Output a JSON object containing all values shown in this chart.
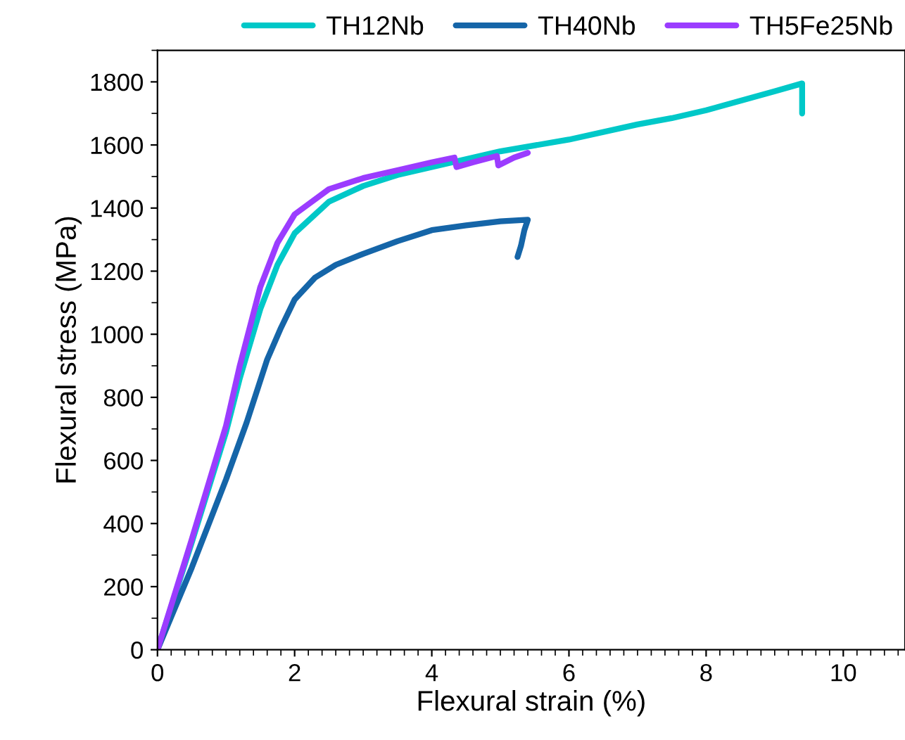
{
  "chart_data": {
    "type": "line",
    "xlabel": "Flexural strain (%)",
    "ylabel": "Flexural stress (MPa)",
    "xlim": [
      0,
      10.9
    ],
    "ylim": [
      0,
      1900
    ],
    "xticks": [
      0,
      2,
      4,
      6,
      8,
      10
    ],
    "yticks": [
      0,
      200,
      400,
      600,
      800,
      1000,
      1200,
      1400,
      1600,
      1800
    ],
    "grid": false,
    "legend": "top",
    "marker": "none",
    "line_style": "solid",
    "series": [
      {
        "name": "TH12Nb",
        "color": "#00c8c8",
        "x": [
          0,
          0.5,
          1,
          1.2,
          1.5,
          1.75,
          2,
          2.5,
          3,
          3.5,
          4,
          4.5,
          5,
          6,
          7,
          7.5,
          8,
          8.5,
          9,
          9.4,
          9.4
        ],
        "values": [
          0,
          340,
          690,
          860,
          1080,
          1220,
          1320,
          1420,
          1470,
          1505,
          1530,
          1555,
          1580,
          1617,
          1665,
          1685,
          1710,
          1740,
          1770,
          1795,
          1700
        ]
      },
      {
        "name": "TH40Nb",
        "color": "#1565a8",
        "x": [
          0,
          0.5,
          1,
          1.3,
          1.6,
          1.8,
          2,
          2.3,
          2.6,
          3,
          3.5,
          4,
          4.5,
          5,
          5.4,
          5.35,
          5.3,
          5.25
        ],
        "values": [
          0,
          260,
          540,
          720,
          920,
          1020,
          1110,
          1180,
          1220,
          1255,
          1295,
          1330,
          1345,
          1358,
          1363,
          1330,
          1280,
          1245
        ]
      },
      {
        "name": "TH5Fe25Nb",
        "color": "#9b3cff",
        "x": [
          0,
          0.5,
          1,
          1.2,
          1.5,
          1.75,
          2,
          2.5,
          3,
          3.5,
          4,
          4.33,
          4.36,
          4.6,
          4.95,
          4.97,
          5.2,
          5.4
        ],
        "values": [
          0,
          350,
          710,
          900,
          1150,
          1290,
          1380,
          1460,
          1495,
          1520,
          1545,
          1560,
          1530,
          1545,
          1565,
          1535,
          1560,
          1575
        ]
      }
    ]
  }
}
